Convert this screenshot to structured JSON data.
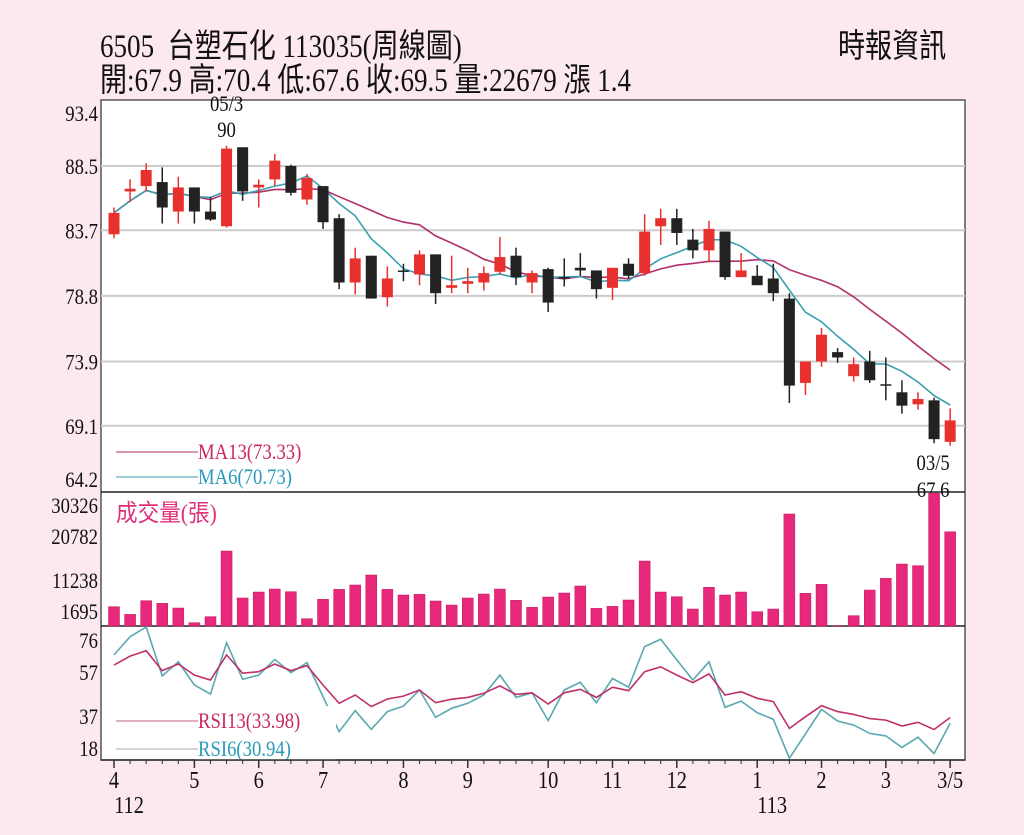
{
  "header": {
    "title": "6505  台塑石化 113035(周線圖)",
    "source": "時報資訊",
    "summary": "開:67.9 高:70.4 低:67.6 收:69.5 量:22679 漲 1.4"
  },
  "colors": {
    "background": "#fce8f0",
    "up_candle": "#e8302e",
    "down_candle": "#222222",
    "ma13": "#b0306a",
    "ma6": "#3a9fb0",
    "volume": "#e8287a",
    "rsi13": "#c0306a",
    "rsi6": "#5aa8b0"
  },
  "chart_data": [
    {
      "type": "candlestick",
      "name": "price",
      "yticks": [
        "93.4",
        "88.5",
        "83.7",
        "78.8",
        "73.9",
        "69.1",
        "64.2"
      ],
      "ylim": [
        64.2,
        93.4
      ],
      "grid": true,
      "legend": [
        "MA13(73.33)",
        "MA6(70.73)"
      ],
      "legend_placement": "bottom-left",
      "annotations": [
        {
          "lines": [
            "05/3",
            "90"
          ],
          "candle": 8,
          "kind": "high"
        },
        {
          "lines": [
            "03/5",
            "67.6"
          ],
          "candle": 53,
          "kind": "low"
        }
      ],
      "ohlc": [
        [
          83.4,
          85.4,
          83.1,
          85.0
        ],
        [
          86.6,
          87.5,
          85.8,
          86.8
        ],
        [
          87.0,
          88.7,
          86.6,
          88.2
        ],
        [
          87.3,
          88.4,
          84.2,
          85.4
        ],
        [
          85.1,
          87.7,
          84.2,
          86.9
        ],
        [
          86.9,
          86.9,
          84.2,
          85.1
        ],
        [
          85.1,
          86.2,
          84.4,
          84.5
        ],
        [
          84.0,
          90.0,
          83.9,
          89.8
        ],
        [
          89.9,
          89.9,
          85.9,
          86.6
        ],
        [
          86.9,
          87.5,
          85.4,
          87.1
        ],
        [
          87.5,
          89.4,
          87.0,
          88.9
        ],
        [
          88.5,
          88.6,
          86.3,
          86.5
        ],
        [
          86.0,
          87.9,
          85.6,
          87.6
        ],
        [
          87.0,
          87.0,
          83.8,
          84.3
        ],
        [
          84.6,
          84.9,
          79.3,
          79.8
        ],
        [
          79.8,
          82.4,
          78.9,
          81.6
        ],
        [
          81.8,
          81.8,
          78.6,
          78.6
        ],
        [
          78.7,
          81.0,
          78.0,
          80.1
        ],
        [
          80.7,
          81.2,
          79.9,
          80.6
        ],
        [
          80.4,
          82.2,
          79.6,
          81.9
        ],
        [
          81.9,
          81.9,
          78.2,
          79.0
        ],
        [
          79.4,
          81.8,
          79.0,
          79.6
        ],
        [
          79.7,
          80.9,
          79.0,
          79.9
        ],
        [
          79.8,
          81.0,
          79.2,
          80.5
        ],
        [
          80.6,
          83.2,
          80.4,
          81.7
        ],
        [
          81.8,
          82.4,
          79.6,
          80.2
        ],
        [
          79.8,
          80.7,
          79.0,
          80.5
        ],
        [
          80.8,
          80.9,
          77.6,
          78.3
        ],
        [
          80.2,
          81.6,
          79.5,
          80.1
        ],
        [
          80.9,
          82.0,
          80.3,
          80.7
        ],
        [
          80.7,
          80.7,
          78.6,
          79.3
        ],
        [
          79.4,
          80.9,
          78.5,
          80.9
        ],
        [
          81.2,
          81.6,
          80.1,
          80.3
        ],
        [
          80.5,
          84.9,
          80.3,
          83.6
        ],
        [
          84.0,
          85.3,
          82.6,
          84.6
        ],
        [
          84.6,
          85.3,
          82.6,
          83.5
        ],
        [
          83.0,
          83.8,
          81.6,
          82.2
        ],
        [
          82.2,
          84.4,
          81.3,
          83.8
        ],
        [
          83.6,
          83.6,
          80.0,
          80.2
        ],
        [
          80.2,
          82.0,
          80.2,
          80.7
        ],
        [
          80.3,
          81.1,
          79.6,
          79.6
        ],
        [
          80.1,
          81.2,
          78.4,
          79.0
        ],
        [
          78.6,
          79.0,
          70.8,
          72.1
        ],
        [
          72.3,
          73.9,
          71.4,
          73.9
        ],
        [
          73.9,
          76.4,
          73.5,
          75.9
        ],
        [
          74.6,
          74.9,
          73.8,
          74.2
        ],
        [
          72.8,
          74.2,
          72.4,
          73.7
        ],
        [
          73.9,
          74.7,
          72.3,
          72.5
        ],
        [
          72.2,
          74.2,
          71.0,
          72.1
        ],
        [
          71.6,
          72.5,
          70.0,
          70.6
        ],
        [
          70.7,
          71.6,
          70.3,
          71.1
        ],
        [
          71.0,
          71.2,
          67.8,
          68.1
        ],
        [
          67.9,
          70.4,
          67.6,
          69.5
        ]
      ]
    },
    {
      "type": "bar",
      "name": "volume",
      "label": "成交量(張)",
      "yticks": [
        "30326",
        "20782",
        "11238",
        "1695"
      ],
      "ylim": [
        0,
        31400
      ],
      "values": [
        4650,
        2800,
        6100,
        5450,
        4330,
        800,
        2250,
        18050,
        6740,
        8180,
        8900,
        8260,
        1760,
        6420,
        8820,
        9870,
        12280,
        8820,
        7460,
        7620,
        6020,
        5050,
        6740,
        7700,
        8900,
        6180,
        4490,
        6980,
        7940,
        9630,
        4250,
        4730,
        6260,
        15640,
        8180,
        7060,
        4090,
        9310,
        7460,
        8180,
        3450,
        4090,
        26960,
        7860,
        10030,
        100,
        2490,
        8660,
        11470,
        14920,
        14520,
        31950,
        22679
      ]
    },
    {
      "type": "line",
      "name": "rsi",
      "yticks": [
        "76",
        "57",
        "37",
        "18"
      ],
      "legend": [
        "RSI13(33.98)",
        "RSI6(30.94)"
      ],
      "legend_placement": "bottom-left",
      "series": [
        {
          "name": "RSI13",
          "values": [
            62.4,
            67.3,
            70.2,
            59.4,
            63.0,
            57.0,
            54.3,
            67.9,
            58.0,
            58.8,
            63.0,
            59.4,
            62.1,
            51.6,
            41.7,
            46.2,
            39.9,
            44.0,
            45.6,
            48.9,
            42.0,
            43.9,
            44.9,
            47.1,
            51.1,
            46.5,
            47.4,
            41.3,
            47.4,
            49.3,
            44.9,
            50.4,
            48.5,
            58.8,
            61.5,
            57.0,
            52.9,
            57.6,
            46.2,
            48.0,
            44.4,
            42.6,
            28.1,
            34.4,
            40.4,
            37.2,
            35.7,
            33.4,
            32.6,
            29.4,
            31.4,
            27.5,
            33.98
          ]
        },
        {
          "name": "RSI6",
          "values": [
            67.9,
            77.8,
            83.2,
            56.5,
            64.2,
            51.6,
            46.7,
            74.5,
            54.7,
            57.0,
            65.5,
            58.3,
            63.7,
            45.3,
            26.3,
            37.7,
            27.6,
            37.2,
            40.2,
            48.9,
            34.1,
            39.0,
            41.7,
            46.2,
            57.0,
            44.9,
            47.4,
            32.3,
            48.9,
            53.1,
            42.0,
            55.2,
            50.4,
            72.4,
            76.4,
            65.2,
            54.3,
            64.2,
            39.5,
            42.9,
            36.6,
            33.0,
            11.9,
            25.1,
            38.4,
            32.1,
            29.9,
            25.4,
            24.0,
            17.8,
            23.3,
            14.5,
            30.94
          ]
        }
      ]
    }
  ],
  "xaxis": {
    "months": [
      {
        "label": "4",
        "candle": 1,
        "year": "112"
      },
      {
        "label": "5",
        "candle": 6
      },
      {
        "label": "6",
        "candle": 10
      },
      {
        "label": "7",
        "candle": 14
      },
      {
        "label": "8",
        "candle": 19
      },
      {
        "label": "9",
        "candle": 23
      },
      {
        "label": "10",
        "candle": 28
      },
      {
        "label": "11",
        "candle": 32
      },
      {
        "label": "12",
        "candle": 36
      },
      {
        "label": "1",
        "candle": 41,
        "year": "113"
      },
      {
        "label": "2",
        "candle": 45
      },
      {
        "label": "3",
        "candle": 49
      },
      {
        "label": "3/5",
        "candle": 53
      }
    ]
  }
}
